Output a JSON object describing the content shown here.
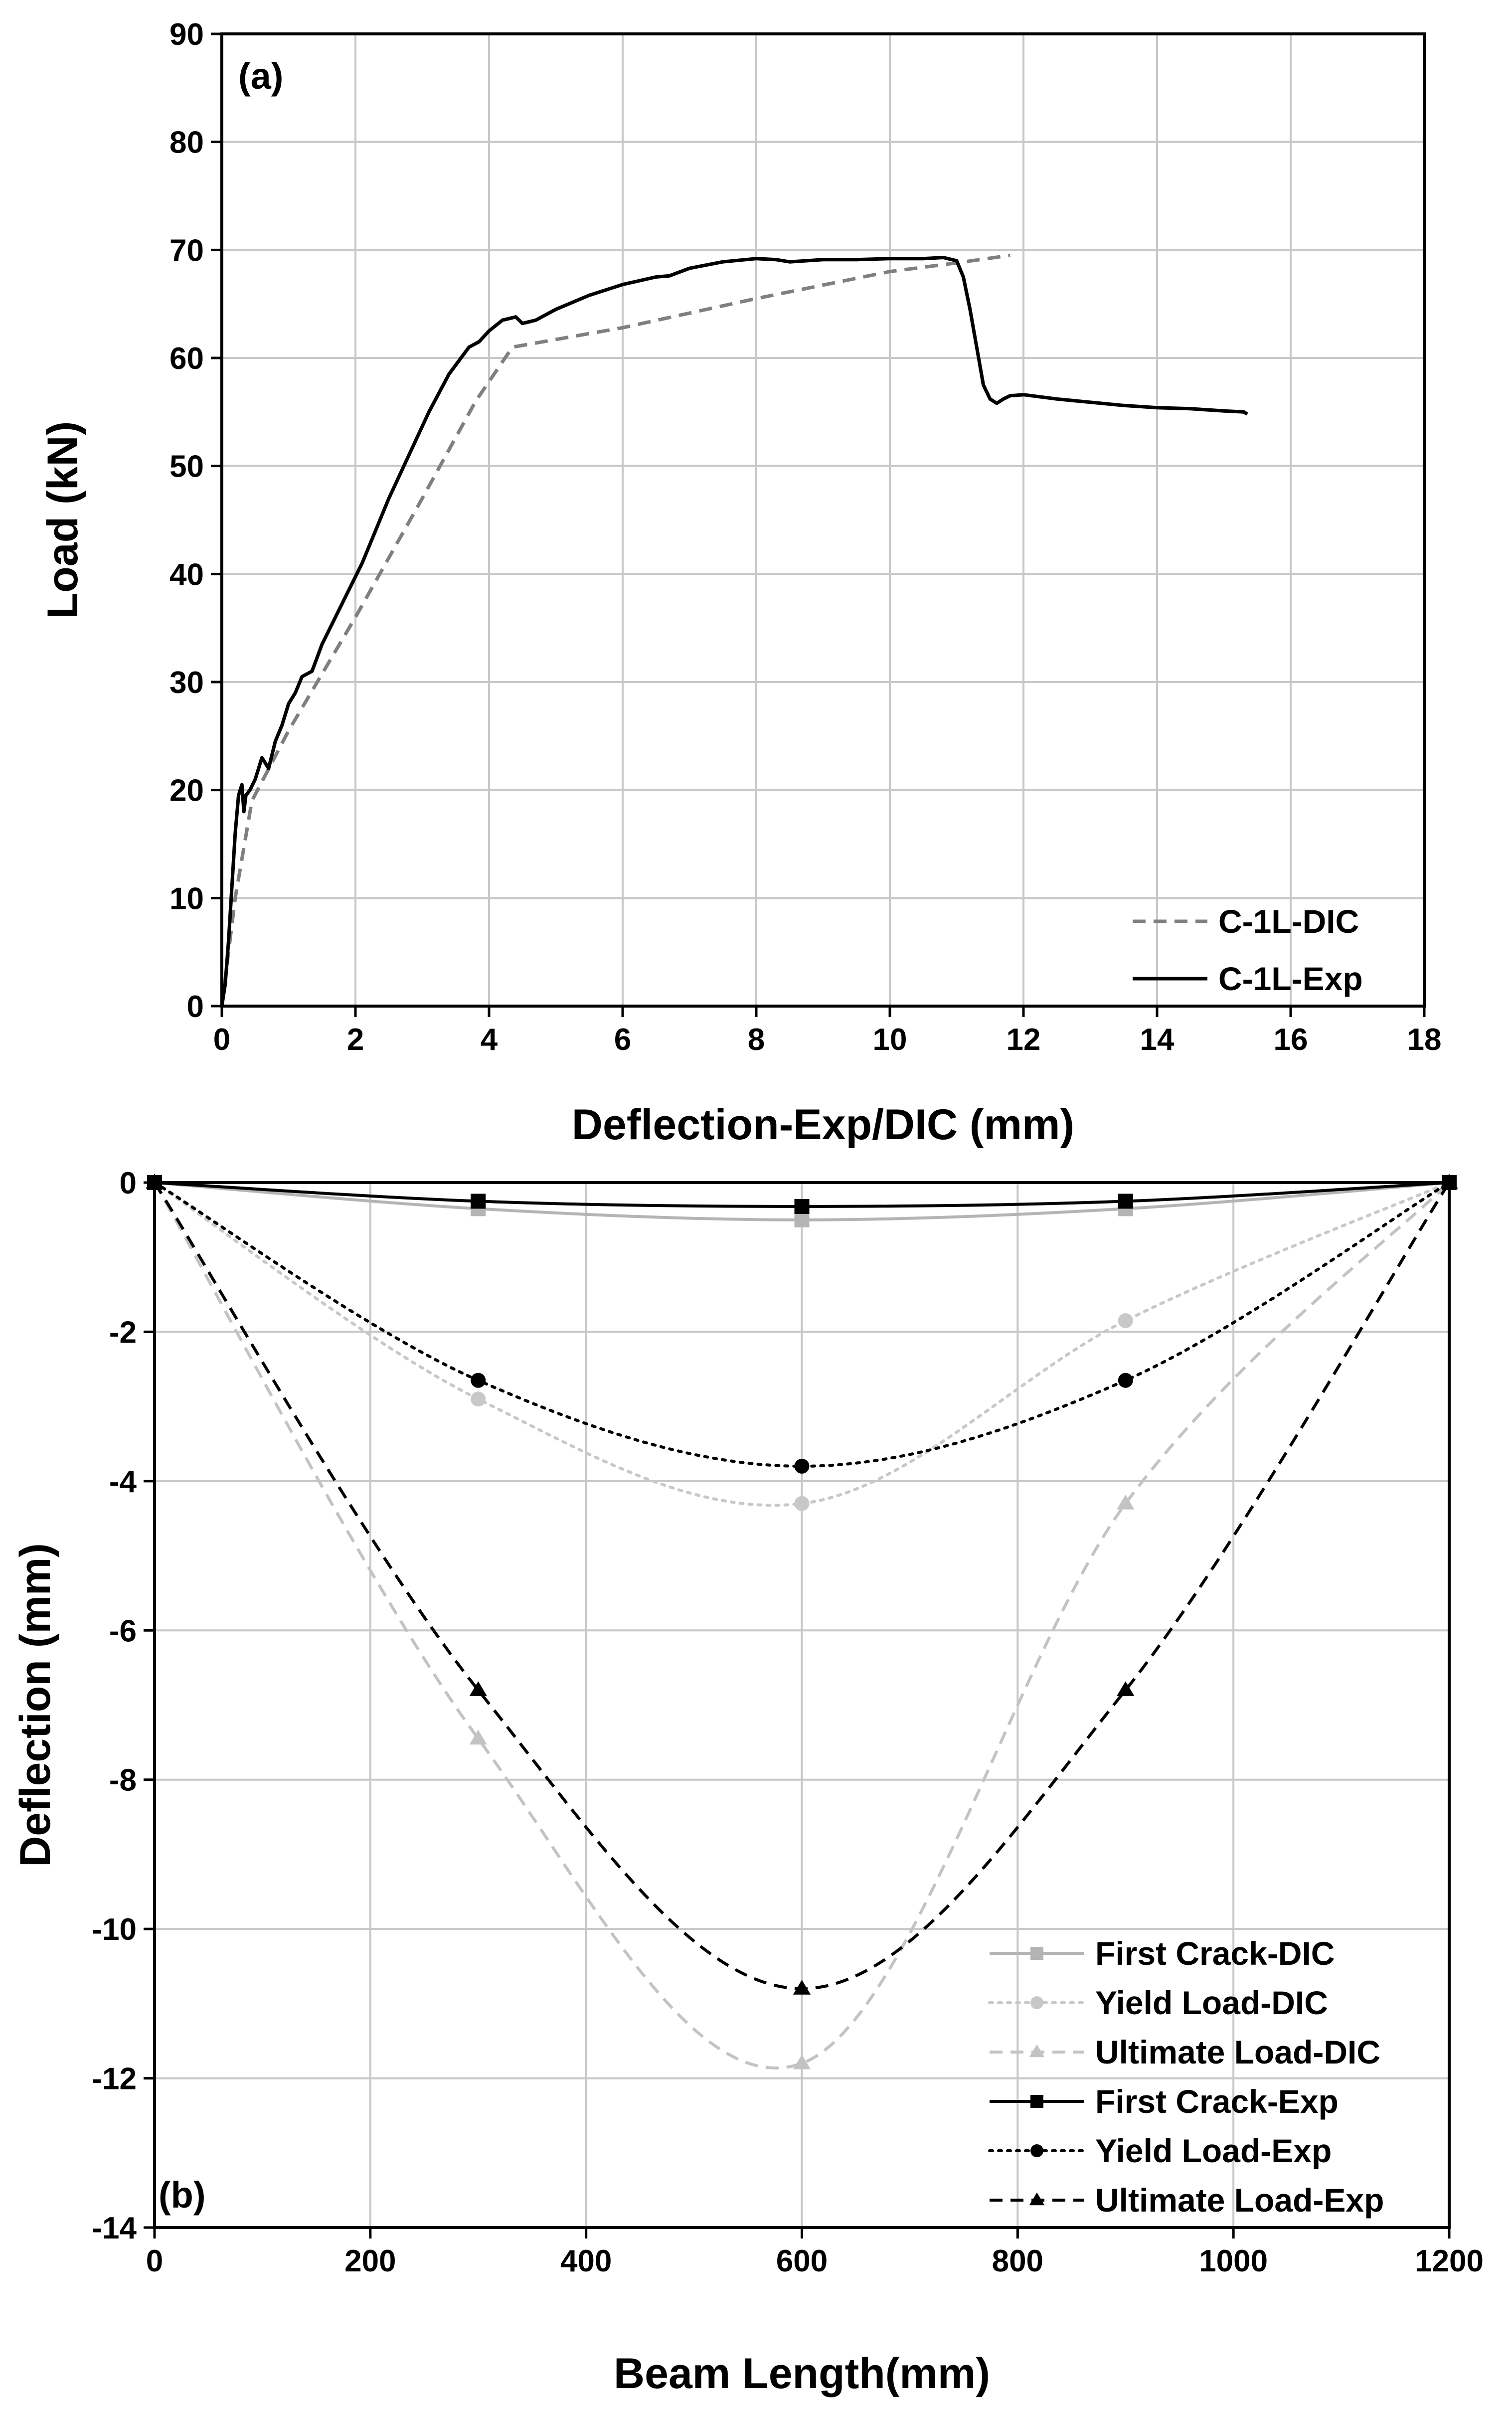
{
  "chart_data": [
    {
      "type": "line",
      "panel_label": "(a)",
      "xlabel": "Deflection-Exp/DIC (mm)",
      "ylabel": "Load (kN)",
      "xlim": [
        0,
        18
      ],
      "ylim": [
        0,
        90
      ],
      "xticks": [
        0,
        2,
        4,
        6,
        8,
        10,
        12,
        14,
        16,
        18
      ],
      "yticks": [
        0,
        10,
        20,
        30,
        40,
        50,
        60,
        70,
        80,
        90
      ],
      "grid": true,
      "legend_position": "bottom-right",
      "series": [
        {
          "name": "C-1L-DIC",
          "color": "#7f7f7f",
          "style": "dashed",
          "x": [
            0,
            0.2,
            0.45,
            1.0,
            2.0,
            3.0,
            3.8,
            4.35,
            6.0,
            8.0,
            10.0,
            11.0,
            11.8
          ],
          "y": [
            0,
            10,
            19,
            25.5,
            36,
            47,
            56,
            61,
            62.8,
            65.5,
            68,
            68.8,
            69.5
          ]
        },
        {
          "name": "C-1L-Exp",
          "color": "#000000",
          "style": "solid",
          "x": [
            0,
            0.05,
            0.1,
            0.15,
            0.2,
            0.25,
            0.3,
            0.33,
            0.36,
            0.42,
            0.5,
            0.6,
            0.7,
            0.8,
            0.9,
            1.0,
            1.1,
            1.2,
            1.35,
            1.5,
            1.7,
            1.9,
            2.1,
            2.3,
            2.5,
            2.8,
            3.1,
            3.4,
            3.7,
            3.85,
            4.0,
            4.2,
            4.4,
            4.5,
            4.7,
            5.0,
            5.5,
            6.0,
            6.5,
            6.7,
            7.0,
            7.5,
            8.0,
            8.3,
            8.5,
            9.0,
            9.5,
            10.0,
            10.5,
            10.8,
            11.0,
            11.1,
            11.2,
            11.3,
            11.4,
            11.5,
            11.6,
            11.7,
            11.8,
            12.0,
            12.5,
            13.0,
            13.5,
            14.0,
            14.5,
            15.0,
            15.3,
            15.35
          ],
          "y": [
            0,
            2,
            6,
            11,
            16,
            19.5,
            20.5,
            18,
            19.5,
            20,
            21,
            23,
            22,
            24.5,
            26,
            28,
            29,
            30.5,
            31,
            33.5,
            36,
            38.5,
            41,
            44,
            47,
            51,
            55,
            58.5,
            61,
            61.5,
            62.5,
            63.5,
            63.8,
            63.2,
            63.5,
            64.5,
            65.8,
            66.8,
            67.5,
            67.6,
            68.3,
            68.9,
            69.2,
            69.1,
            68.9,
            69.1,
            69.1,
            69.2,
            69.2,
            69.3,
            69.0,
            67.5,
            64.5,
            61,
            57.5,
            56.2,
            55.8,
            56.2,
            56.5,
            56.6,
            56.2,
            55.9,
            55.6,
            55.4,
            55.3,
            55.1,
            55.0,
            54.8
          ]
        }
      ]
    },
    {
      "type": "line",
      "panel_label": "(b)",
      "xlabel": "Beam Length(mm)",
      "ylabel": "Deflection (mm)",
      "xlim": [
        0,
        1200
      ],
      "ylim": [
        -14,
        0
      ],
      "xticks": [
        0,
        200,
        400,
        600,
        800,
        1000,
        1200
      ],
      "yticks": [
        0,
        -2,
        -4,
        -6,
        -8,
        -10,
        -12,
        -14
      ],
      "grid": true,
      "legend_position": "bottom-right",
      "series": [
        {
          "name": "First Crack-DIC",
          "color": "#b4b4b4",
          "style": "solid",
          "marker": "square",
          "x": [
            0,
            300,
            600,
            900,
            1200
          ],
          "y": [
            0,
            -0.35,
            -0.5,
            -0.35,
            0
          ]
        },
        {
          "name": "Yield Load-DIC",
          "color": "#c8c8c8",
          "style": "dotted",
          "marker": "circle",
          "x": [
            0,
            300,
            600,
            900,
            1200
          ],
          "y": [
            0,
            -2.9,
            -4.3,
            -1.85,
            0
          ]
        },
        {
          "name": "Ultimate Load-DIC",
          "color": "#c3c3c3",
          "style": "dashed",
          "marker": "triangle",
          "x": [
            0,
            300,
            600,
            900,
            1200
          ],
          "y": [
            0,
            -7.45,
            -11.8,
            -4.3,
            0
          ]
        },
        {
          "name": "First Crack-Exp",
          "color": "#000000",
          "style": "solid",
          "marker": "square",
          "x": [
            0,
            300,
            600,
            900,
            1200
          ],
          "y": [
            0,
            -0.25,
            -0.32,
            -0.25,
            0
          ]
        },
        {
          "name": "Yield Load-Exp",
          "color": "#000000",
          "style": "dotted",
          "marker": "circle",
          "x": [
            0,
            300,
            600,
            900,
            1200
          ],
          "y": [
            0,
            -2.65,
            -3.8,
            -2.65,
            0
          ]
        },
        {
          "name": "Ultimate Load-Exp",
          "color": "#000000",
          "style": "dashed",
          "marker": "triangle",
          "x": [
            0,
            300,
            600,
            900,
            1200
          ],
          "y": [
            0,
            -6.8,
            -10.8,
            -6.8,
            0
          ]
        }
      ]
    }
  ]
}
